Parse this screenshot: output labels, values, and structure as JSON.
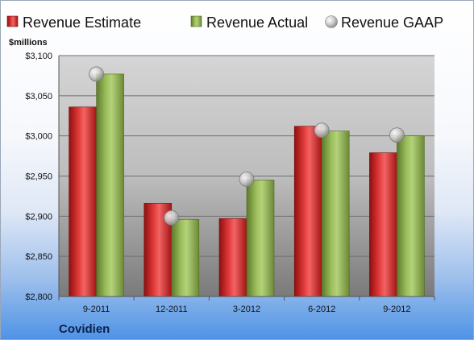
{
  "company": "Covidien",
  "chart_data": {
    "type": "bar",
    "ylabel": "$millions",
    "categories": [
      "9-2011",
      "12-2011",
      "3-2012",
      "6-2012",
      "9-2012"
    ],
    "ylim": [
      2800,
      3100
    ],
    "yticks": [
      2800,
      2850,
      2900,
      2950,
      3000,
      3050,
      3100
    ],
    "ytick_labels": [
      "$2,800",
      "$2,850",
      "$2,900",
      "$2,950",
      "$3,000",
      "$3,050",
      "$3,100"
    ],
    "grid": true,
    "legend_position": "top",
    "series": [
      {
        "name": "Revenue Estimate",
        "kind": "bar",
        "color": "#d42a2a",
        "values": [
          3036,
          2916,
          2897,
          3012,
          2979
        ]
      },
      {
        "name": "Revenue Actual",
        "kind": "bar",
        "color": "#8db04e",
        "values": [
          3077,
          2896,
          2945,
          3006,
          3000
        ]
      },
      {
        "name": "Revenue GAAP",
        "kind": "marker",
        "color": "#b9b9b9",
        "values": [
          3077,
          2898,
          2946,
          3007,
          3001
        ]
      }
    ]
  }
}
